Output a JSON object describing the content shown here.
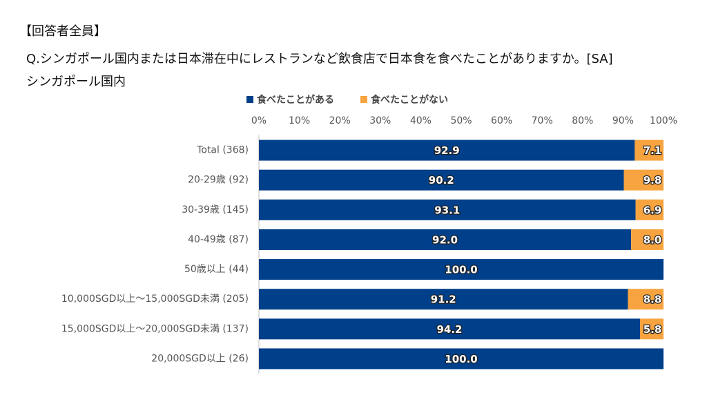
{
  "header": "【回答者全員】",
  "question": "Q.シンガポール国内または日本滞在中にレストランなど飲食店で日本食を食べたことがありますか。[SA]",
  "chart_data": {
    "type": "stacked-bar-horizontal",
    "title": "シンガポール国内",
    "categories": [
      "Total (368)",
      "20-29歳 (92)",
      "30-39歳 (145)",
      "40-49歳 (87)",
      "50歳以上 (44)",
      "10,000SGD以上～15,000SGD未満 (205)",
      "15,000SGD以上～20,000SGD未満 (137)",
      "20,000SGD以上 (26)"
    ],
    "series": [
      {
        "name": "食べたことがある",
        "color": "#003f8a",
        "values": [
          92.9,
          90.2,
          93.1,
          92.0,
          100.0,
          91.2,
          94.2,
          100.0
        ],
        "value_labels": [
          "92.9",
          "90.2",
          "93.1",
          "92.0",
          "100.0",
          "91.2",
          "94.2",
          "100.0"
        ]
      },
      {
        "name": "食べたことがない",
        "color": "#f7a440",
        "values": [
          7.1,
          9.8,
          6.9,
          8.0,
          0,
          8.8,
          5.8,
          0
        ],
        "value_labels": [
          "7.1",
          "9.8",
          "6.9",
          "8.0",
          null,
          "8.8",
          "5.8",
          null
        ]
      }
    ],
    "xlim": [
      0,
      100
    ],
    "xticks": [
      {
        "value": 0,
        "label": "0%"
      },
      {
        "value": 10,
        "label": "10%"
      },
      {
        "value": 20,
        "label": "20%"
      },
      {
        "value": 30,
        "label": "30%"
      },
      {
        "value": 40,
        "label": "40%"
      },
      {
        "value": 50,
        "label": "50%"
      },
      {
        "value": 60,
        "label": "60%"
      },
      {
        "value": 70,
        "label": "70%"
      },
      {
        "value": 80,
        "label": "80%"
      },
      {
        "value": 90,
        "label": "90%"
      },
      {
        "value": 100,
        "label": "100%"
      }
    ],
    "legend": "top"
  }
}
